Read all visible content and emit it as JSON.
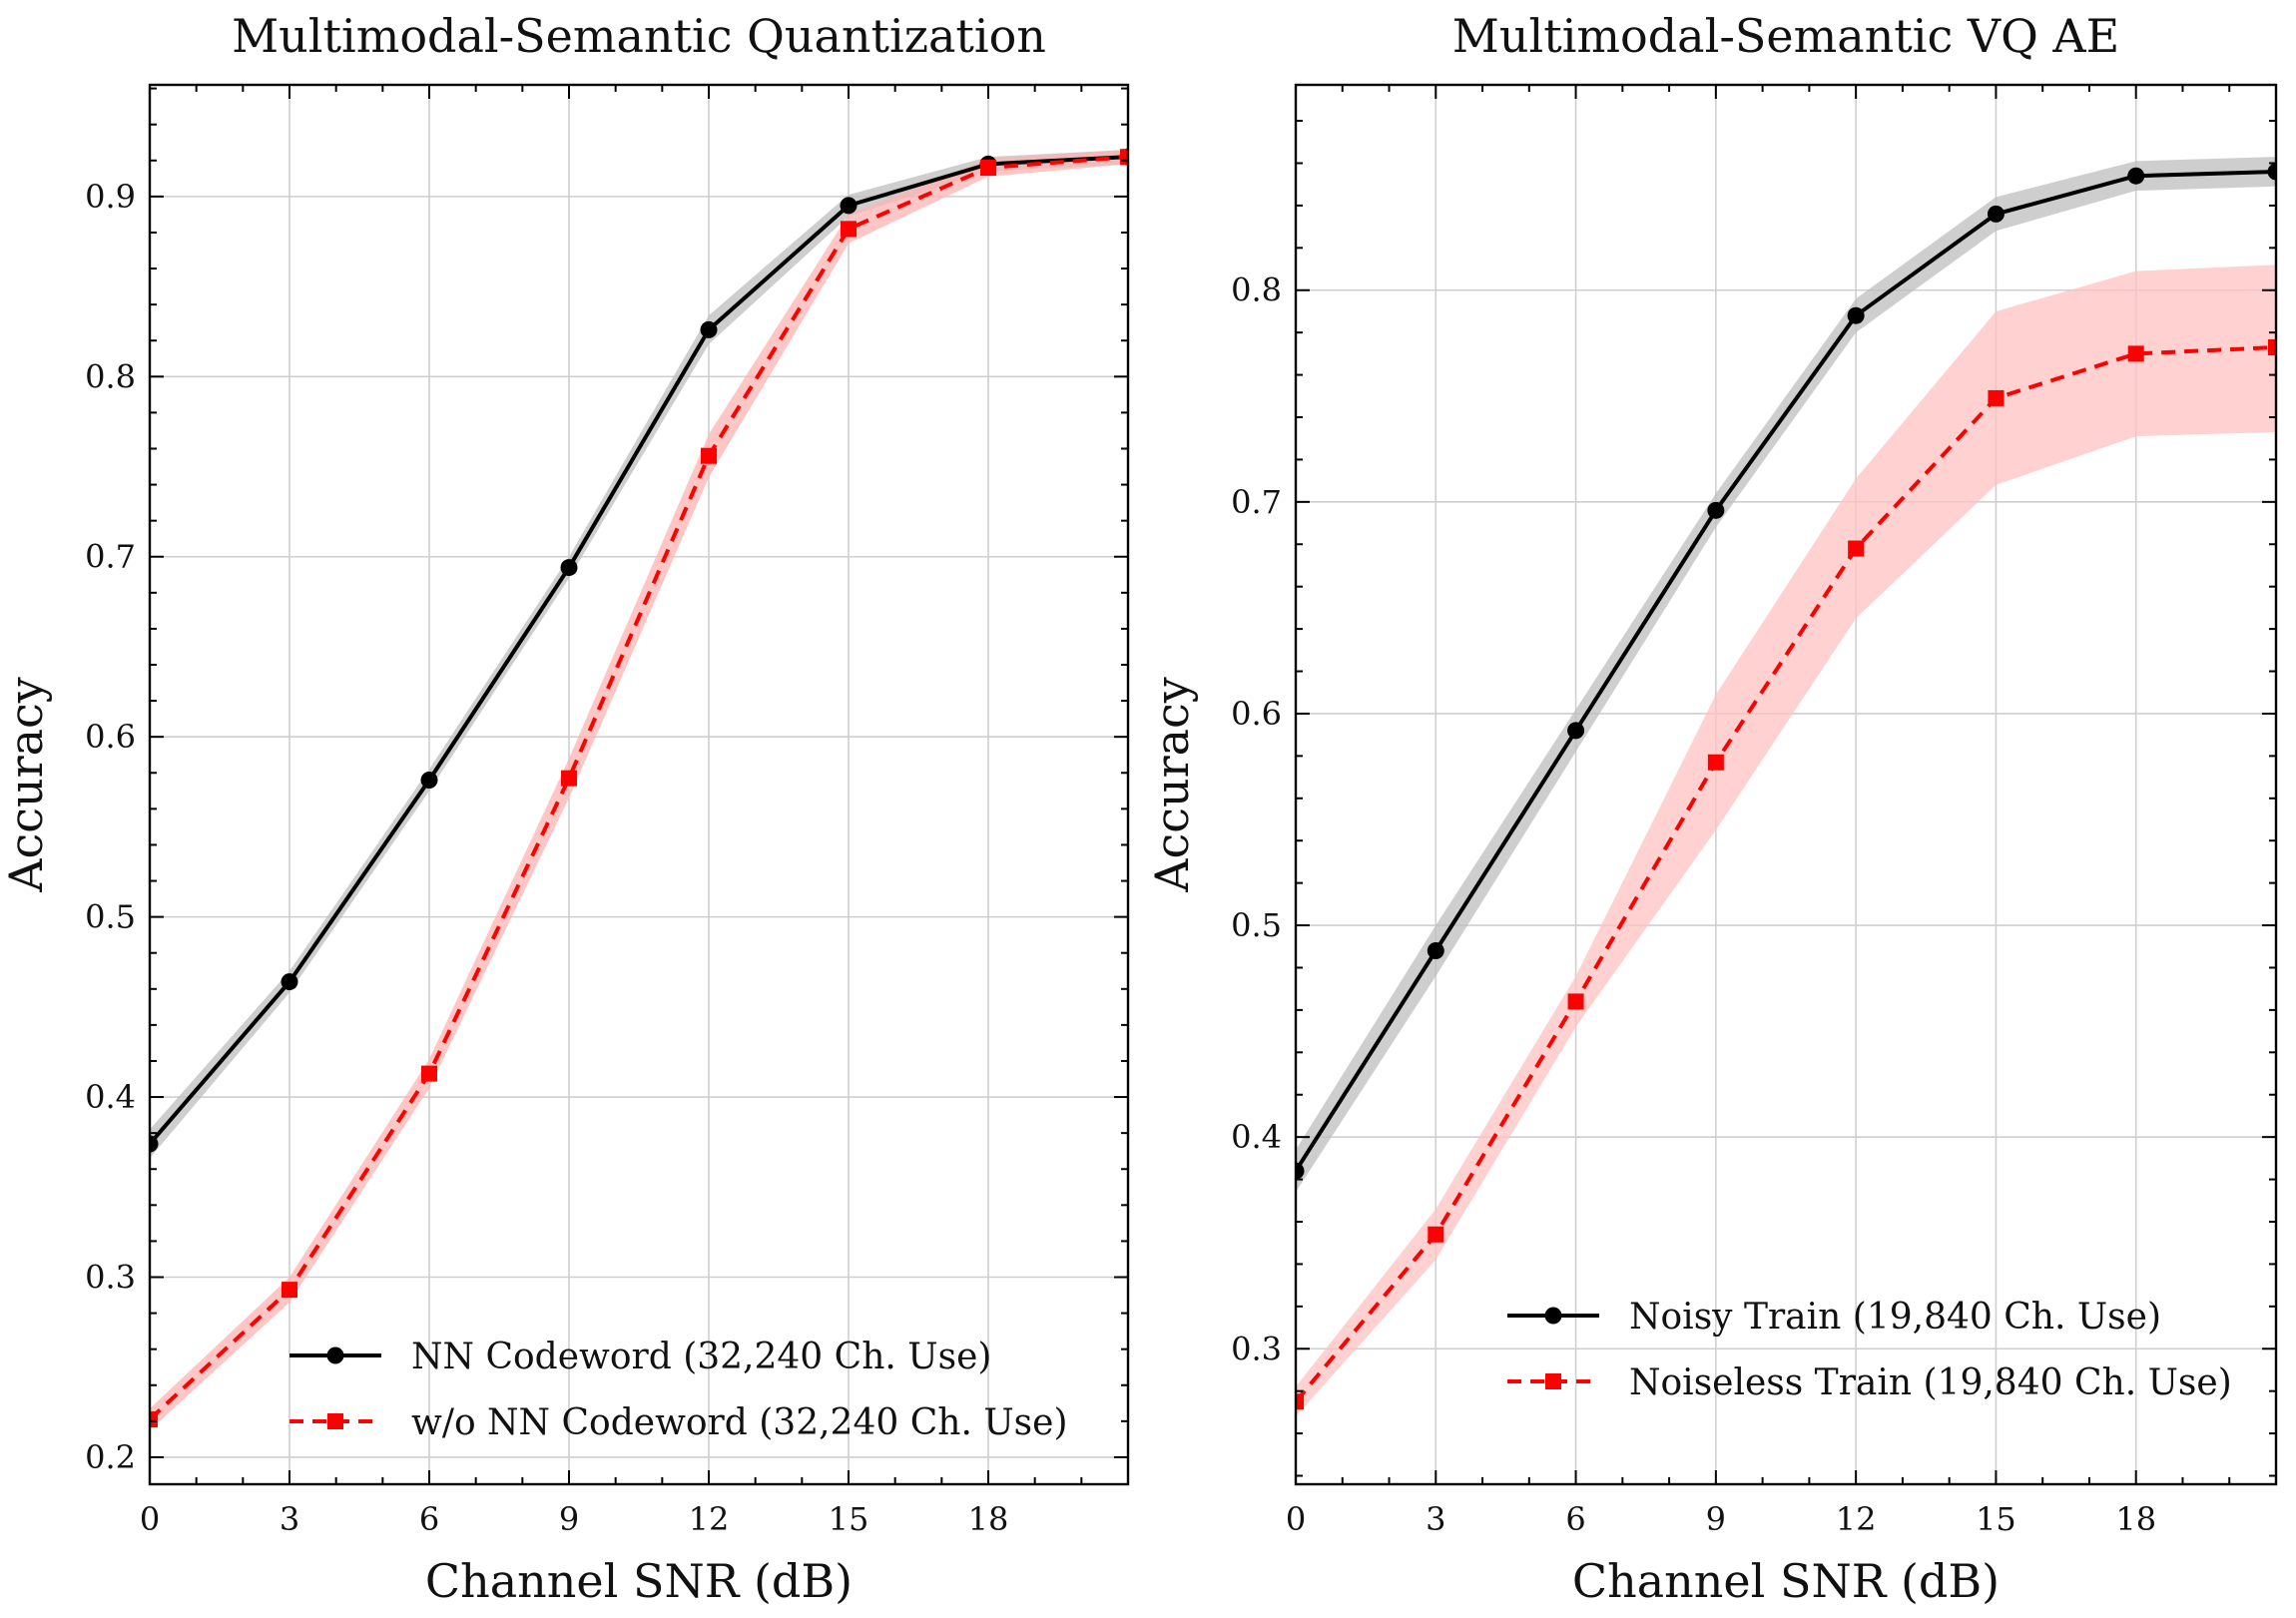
{
  "chart_data": [
    {
      "type": "line",
      "title": "Multimodal-Semantic Quantization",
      "xlabel": "Channel SNR (dB)",
      "ylabel": "Accuracy",
      "xlim": [
        0,
        21
      ],
      "ylim": [
        0.185,
        0.962
      ],
      "xticks": [
        0,
        3,
        6,
        9,
        12,
        15,
        18
      ],
      "xtick_labels": [
        "0",
        "3",
        "6",
        "9",
        "12",
        "15",
        "18"
      ],
      "yticks": [
        0.2,
        0.3,
        0.4,
        0.5,
        0.6,
        0.7,
        0.8,
        0.9
      ],
      "ytick_labels": [
        "0.2",
        "0.3",
        "0.4",
        "0.5",
        "0.6",
        "0.7",
        "0.8",
        "0.9"
      ],
      "grid": true,
      "legend_position": "lower-right",
      "x": [
        0,
        3,
        6,
        9,
        12,
        15,
        18,
        21
      ],
      "series": [
        {
          "name": "NN Codeword (32,240 Ch. Use)",
          "color": "#000000",
          "band_color": "#bdbdbd",
          "marker": "circle",
          "linestyle": "solid",
          "values": [
            0.374,
            0.464,
            0.576,
            0.694,
            0.826,
            0.895,
            0.918,
            0.922
          ],
          "lower": [
            0.366,
            0.458,
            0.57,
            0.688,
            0.818,
            0.889,
            0.914,
            0.918
          ],
          "upper": [
            0.382,
            0.47,
            0.582,
            0.7,
            0.834,
            0.901,
            0.922,
            0.926
          ]
        },
        {
          "name": "w/o NN Codeword (32,240 Ch. Use)",
          "color": "#ff0000",
          "band_color": "#ffb3b3",
          "marker": "square",
          "linestyle": "dashed",
          "values": [
            0.221,
            0.293,
            0.413,
            0.577,
            0.756,
            0.882,
            0.916,
            0.922
          ],
          "lower": [
            0.215,
            0.286,
            0.405,
            0.566,
            0.744,
            0.874,
            0.911,
            0.918
          ],
          "upper": [
            0.227,
            0.3,
            0.421,
            0.588,
            0.768,
            0.89,
            0.921,
            0.926
          ]
        }
      ]
    },
    {
      "type": "line",
      "title": "Multimodal-Semantic VQ AE",
      "xlabel": "Channel SNR (dB)",
      "ylabel": "Accuracy",
      "xlim": [
        0,
        21
      ],
      "ylim": [
        0.236,
        0.897
      ],
      "xticks": [
        0,
        3,
        6,
        9,
        12,
        15,
        18
      ],
      "xtick_labels": [
        "0",
        "3",
        "6",
        "9",
        "12",
        "15",
        "18"
      ],
      "yticks": [
        0.3,
        0.4,
        0.5,
        0.6,
        0.7,
        0.8
      ],
      "ytick_labels": [
        "0.3",
        "0.4",
        "0.5",
        "0.6",
        "0.7",
        "0.8"
      ],
      "grid": true,
      "legend_position": "lower-right",
      "x": [
        0,
        3,
        6,
        9,
        12,
        15,
        18,
        21
      ],
      "series": [
        {
          "name": "Noisy Train (19,840 Ch. Use)",
          "color": "#000000",
          "band_color": "#bdbdbd",
          "marker": "circle",
          "linestyle": "solid",
          "values": [
            0.384,
            0.488,
            0.592,
            0.696,
            0.788,
            0.836,
            0.854,
            0.856
          ],
          "lower": [
            0.374,
            0.476,
            0.582,
            0.688,
            0.78,
            0.828,
            0.847,
            0.849
          ],
          "upper": [
            0.394,
            0.5,
            0.602,
            0.704,
            0.796,
            0.844,
            0.861,
            0.863
          ]
        },
        {
          "name": "Noiseless Train (19,840 Ch. Use)",
          "color": "#ff0000",
          "band_color": "#ffc2c2",
          "marker": "square",
          "linestyle": "dashed",
          "values": [
            0.275,
            0.354,
            0.464,
            0.577,
            0.678,
            0.749,
            0.77,
            0.773
          ],
          "lower": [
            0.268,
            0.342,
            0.452,
            0.545,
            0.645,
            0.708,
            0.731,
            0.733
          ],
          "upper": [
            0.282,
            0.366,
            0.476,
            0.609,
            0.711,
            0.79,
            0.809,
            0.812
          ]
        }
      ]
    }
  ]
}
